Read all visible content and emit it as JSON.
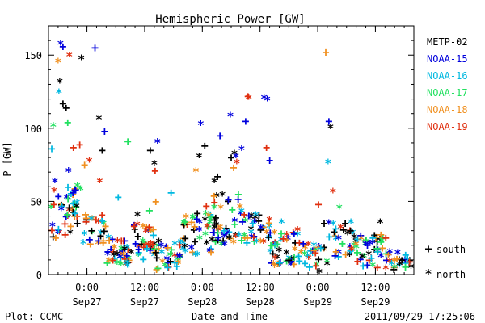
{
  "chart_data": {
    "type": "scatter",
    "title": "Hemispheric Power [GW]",
    "ylabel": "P [GW]",
    "xlabel": "Date and Time",
    "xlim": [
      "2011-09-26 16:00",
      "2011-09-29 20:00"
    ],
    "ylim": [
      0,
      170
    ],
    "yticks": [
      0,
      50,
      100,
      150
    ],
    "xticks": [
      {
        "time": "2011-09-27 00:00",
        "label": "0:00",
        "date": "Sep27"
      },
      {
        "time": "2011-09-27 12:00",
        "label": "12:00",
        "date": "Sep27"
      },
      {
        "time": "2011-09-28 00:00",
        "label": "0:00",
        "date": "Sep28"
      },
      {
        "time": "2011-09-28 12:00",
        "label": "12:00",
        "date": "Sep28"
      },
      {
        "time": "2011-09-29 00:00",
        "label": "0:00",
        "date": "Sep29"
      },
      {
        "time": "2011-09-29 12:00",
        "label": "12:00",
        "date": "Sep29"
      }
    ],
    "grid": false,
    "legend_position": "right",
    "marker_legend": [
      {
        "symbol": "+",
        "label": "south"
      },
      {
        "symbol": "*",
        "label": "north"
      }
    ],
    "series": [
      {
        "name": "METP-02",
        "color": "#000000",
        "points": [
          {
            "t": "2011-09-26 18:20",
            "y": 131,
            "m": "*"
          },
          {
            "t": "2011-09-26 19:00",
            "y": 117,
            "m": "+"
          },
          {
            "t": "2011-09-26 19:40",
            "y": 114,
            "m": "+"
          },
          {
            "t": "2011-09-26 20:30",
            "y": 28,
            "m": "*"
          },
          {
            "t": "2011-09-26 22:50",
            "y": 147,
            "m": "*"
          },
          {
            "t": "2011-09-27 02:30",
            "y": 106,
            "m": "*"
          },
          {
            "t": "2011-09-27 03:10",
            "y": 85,
            "m": "+"
          },
          {
            "t": "2011-09-27 10:30",
            "y": 40,
            "m": "*"
          },
          {
            "t": "2011-09-27 13:10",
            "y": 85,
            "m": "+"
          },
          {
            "t": "2011-09-27 14:00",
            "y": 75,
            "m": "*"
          },
          {
            "t": "2011-09-27 23:20",
            "y": 80,
            "m": "*"
          },
          {
            "t": "2011-09-28 00:30",
            "y": 88,
            "m": "+"
          },
          {
            "t": "2011-09-28 02:30",
            "y": 63,
            "m": "*"
          },
          {
            "t": "2011-09-28 03:10",
            "y": 67,
            "m": "+"
          },
          {
            "t": "2011-09-28 06:00",
            "y": 80,
            "m": "+"
          },
          {
            "t": "2011-09-28 06:40",
            "y": 82,
            "m": "*"
          },
          {
            "t": "2011-09-28 11:00",
            "y": 38,
            "m": "*"
          },
          {
            "t": "2011-09-28 17:30",
            "y": 14,
            "m": "*"
          },
          {
            "t": "2011-09-29 00:20",
            "y": 1,
            "m": "*"
          },
          {
            "t": "2011-09-29 01:20",
            "y": 35,
            "m": "+"
          },
          {
            "t": "2011-09-29 02:40",
            "y": 100,
            "m": "*"
          },
          {
            "t": "2011-09-29 06:50",
            "y": 30,
            "m": "+"
          },
          {
            "t": "2011-09-29 13:00",
            "y": 35,
            "m": "*"
          },
          {
            "t": "2011-09-29 17:30",
            "y": 10,
            "m": "+"
          }
        ]
      },
      {
        "name": "NOAA-15",
        "color": "#0000dd",
        "points": [
          {
            "t": "2011-09-26 17:20",
            "y": 63,
            "m": "*"
          },
          {
            "t": "2011-09-26 18:30",
            "y": 157,
            "m": "*"
          },
          {
            "t": "2011-09-26 19:00",
            "y": 156,
            "m": "+"
          },
          {
            "t": "2011-09-26 20:10",
            "y": 70,
            "m": "*"
          },
          {
            "t": "2011-09-26 21:40",
            "y": 58,
            "m": "+"
          },
          {
            "t": "2011-09-27 01:40",
            "y": 155,
            "m": "+"
          },
          {
            "t": "2011-09-27 03:40",
            "y": 98,
            "m": "+"
          },
          {
            "t": "2011-09-27 14:40",
            "y": 90,
            "m": "*"
          },
          {
            "t": "2011-09-27 23:40",
            "y": 102,
            "m": "*"
          },
          {
            "t": "2011-09-28 03:40",
            "y": 95,
            "m": "+"
          },
          {
            "t": "2011-09-28 05:50",
            "y": 108,
            "m": "*"
          },
          {
            "t": "2011-09-28 07:00",
            "y": 80,
            "m": "*"
          },
          {
            "t": "2011-09-28 08:10",
            "y": 85,
            "m": "*"
          },
          {
            "t": "2011-09-28 09:00",
            "y": 105,
            "m": "+"
          },
          {
            "t": "2011-09-28 12:50",
            "y": 120,
            "m": "*"
          },
          {
            "t": "2011-09-28 13:30",
            "y": 119,
            "m": "*"
          },
          {
            "t": "2011-09-28 14:00",
            "y": 78,
            "m": "+"
          },
          {
            "t": "2011-09-29 02:20",
            "y": 105,
            "m": "+"
          },
          {
            "t": "2011-09-29 10:00",
            "y": 20,
            "m": "*"
          },
          {
            "t": "2011-09-29 15:00",
            "y": 15,
            "m": "*"
          }
        ]
      },
      {
        "name": "NOAA-16",
        "color": "#00b8e0",
        "points": [
          {
            "t": "2011-09-26 16:40",
            "y": 86,
            "m": "+"
          },
          {
            "t": "2011-09-26 18:10",
            "y": 124,
            "m": "*"
          },
          {
            "t": "2011-09-26 21:30",
            "y": 42,
            "m": "+"
          },
          {
            "t": "2011-09-27 06:30",
            "y": 53,
            "m": "+"
          },
          {
            "t": "2011-09-27 12:30",
            "y": 18,
            "m": "+"
          },
          {
            "t": "2011-09-27 17:30",
            "y": 56,
            "m": "+"
          },
          {
            "t": "2011-09-28 04:30",
            "y": 30,
            "m": "+"
          },
          {
            "t": "2011-09-28 10:30",
            "y": 35,
            "m": "+"
          },
          {
            "t": "2011-09-28 16:30",
            "y": 35,
            "m": "*"
          },
          {
            "t": "2011-09-29 02:10",
            "y": 76,
            "m": "*"
          },
          {
            "t": "2011-09-29 11:30",
            "y": 25,
            "m": "+"
          }
        ]
      },
      {
        "name": "NOAA-17",
        "color": "#22e060",
        "points": [
          {
            "t": "2011-09-26 17:00",
            "y": 101,
            "m": "*"
          },
          {
            "t": "2011-09-26 20:00",
            "y": 104,
            "m": "+"
          },
          {
            "t": "2011-09-26 22:00",
            "y": 60,
            "m": "*"
          },
          {
            "t": "2011-09-27 08:30",
            "y": 91,
            "m": "+"
          },
          {
            "t": "2011-09-27 13:00",
            "y": 44,
            "m": "+"
          },
          {
            "t": "2011-09-28 07:30",
            "y": 55,
            "m": "+"
          },
          {
            "t": "2011-09-28 14:30",
            "y": 20,
            "m": "+"
          },
          {
            "t": "2011-09-29 04:30",
            "y": 45,
            "m": "*"
          },
          {
            "t": "2011-09-29 12:20",
            "y": 18,
            "m": "+"
          }
        ]
      },
      {
        "name": "NOAA-18",
        "color": "#f09020",
        "points": [
          {
            "t": "2011-09-26 17:30",
            "y": 25,
            "m": "+"
          },
          {
            "t": "2011-09-26 18:00",
            "y": 145,
            "m": "*"
          },
          {
            "t": "2011-09-26 23:30",
            "y": 75,
            "m": "+"
          },
          {
            "t": "2011-09-27 14:20",
            "y": 50,
            "m": "+"
          },
          {
            "t": "2011-09-27 22:40",
            "y": 70,
            "m": "*"
          },
          {
            "t": "2011-09-28 03:50",
            "y": 45,
            "m": "*"
          },
          {
            "t": "2011-09-28 06:30",
            "y": 73,
            "m": "+"
          },
          {
            "t": "2011-09-28 15:00",
            "y": 28,
            "m": "*"
          },
          {
            "t": "2011-09-29 01:40",
            "y": 152,
            "m": "+"
          },
          {
            "t": "2011-09-29 08:00",
            "y": 20,
            "m": "*"
          }
        ]
      },
      {
        "name": "NOAA-19",
        "color": "#e03010",
        "points": [
          {
            "t": "2011-09-26 17:10",
            "y": 48,
            "m": "+"
          },
          {
            "t": "2011-09-26 20:20",
            "y": 149,
            "m": "*"
          },
          {
            "t": "2011-09-26 21:10",
            "y": 87,
            "m": "+"
          },
          {
            "t": "2011-09-26 22:30",
            "y": 89,
            "m": "+"
          },
          {
            "t": "2011-09-27 00:30",
            "y": 77,
            "m": "*"
          },
          {
            "t": "2011-09-27 02:40",
            "y": 63,
            "m": "*"
          },
          {
            "t": "2011-09-27 14:10",
            "y": 71,
            "m": "+"
          },
          {
            "t": "2011-09-28 00:50",
            "y": 47,
            "m": "+"
          },
          {
            "t": "2011-09-28 07:10",
            "y": 76,
            "m": "*"
          },
          {
            "t": "2011-09-28 09:30",
            "y": 122,
            "m": "+"
          },
          {
            "t": "2011-09-28 09:40",
            "y": 120,
            "m": "*"
          },
          {
            "t": "2011-09-28 13:20",
            "y": 87,
            "m": "+"
          },
          {
            "t": "2011-09-29 00:10",
            "y": 48,
            "m": "+"
          },
          {
            "t": "2011-09-29 03:10",
            "y": 56,
            "m": "*"
          },
          {
            "t": "2011-09-29 14:10",
            "y": 25,
            "m": "+"
          }
        ]
      }
    ],
    "clusters": [
      {
        "from": "2011-09-26 16:30",
        "to": "2011-09-26 23:00",
        "min": 25,
        "max": 60,
        "n": 40
      },
      {
        "from": "2011-09-26 23:00",
        "to": "2011-09-27 04:00",
        "min": 20,
        "max": 45,
        "n": 25
      },
      {
        "from": "2011-09-27 04:00",
        "to": "2011-09-27 09:00",
        "min": 5,
        "max": 25,
        "n": 40
      },
      {
        "from": "2011-09-27 09:00",
        "to": "2011-09-27 14:00",
        "min": 10,
        "max": 35,
        "n": 35
      },
      {
        "from": "2011-09-27 14:00",
        "to": "2011-09-27 20:00",
        "min": 3,
        "max": 22,
        "n": 35
      },
      {
        "from": "2011-09-27 20:00",
        "to": "2011-09-28 02:00",
        "min": 12,
        "max": 42,
        "n": 40
      },
      {
        "from": "2011-09-28 02:00",
        "to": "2011-09-28 08:00",
        "min": 18,
        "max": 55,
        "n": 40
      },
      {
        "from": "2011-09-28 08:00",
        "to": "2011-09-28 14:00",
        "min": 20,
        "max": 45,
        "n": 35
      },
      {
        "from": "2011-09-28 14:00",
        "to": "2011-09-28 20:00",
        "min": 5,
        "max": 30,
        "n": 40
      },
      {
        "from": "2011-09-28 20:00",
        "to": "2011-09-29 02:00",
        "min": 5,
        "max": 22,
        "n": 30
      },
      {
        "from": "2011-09-29 02:00",
        "to": "2011-09-29 08:00",
        "min": 10,
        "max": 35,
        "n": 30
      },
      {
        "from": "2011-09-29 08:00",
        "to": "2011-09-29 14:00",
        "min": 5,
        "max": 28,
        "n": 35
      },
      {
        "from": "2011-09-29 14:00",
        "to": "2011-09-29 19:30",
        "min": 3,
        "max": 15,
        "n": 25
      }
    ]
  },
  "footer": {
    "left": "Plot: CCMC",
    "timestamp": "2011/09/29 17:25:06"
  }
}
